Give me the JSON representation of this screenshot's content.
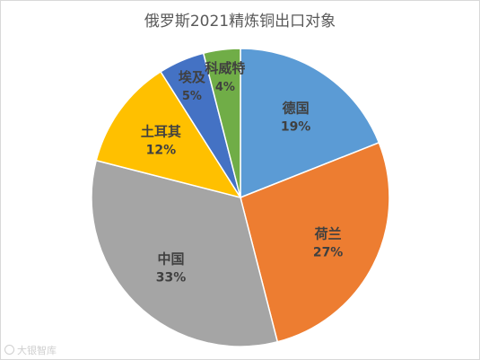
{
  "chart_data": {
    "type": "pie",
    "title": "俄罗斯2021精炼铜出口对象",
    "slices": [
      {
        "label": "德国",
        "value": 19,
        "value_label": "19%",
        "color": "#5B9BD5"
      },
      {
        "label": "荷兰",
        "value": 27,
        "value_label": "27%",
        "color": "#ED7D31"
      },
      {
        "label": "中国",
        "value": 33,
        "value_label": "33%",
        "color": "#A5A5A5"
      },
      {
        "label": "土耳其",
        "value": 12,
        "value_label": "12%",
        "color": "#FFC000"
      },
      {
        "label": "埃及",
        "value": 5,
        "value_label": "5%",
        "color": "#4472C4"
      },
      {
        "label": "科威特",
        "value": 4,
        "value_label": "4%",
        "color": "#70AD47"
      }
    ],
    "start_angle_deg": 0,
    "direction": "clockwise",
    "legend": "none",
    "data_labels": "inside"
  },
  "watermark": {
    "text": "大银智库",
    "icon": "weibo-icon"
  }
}
